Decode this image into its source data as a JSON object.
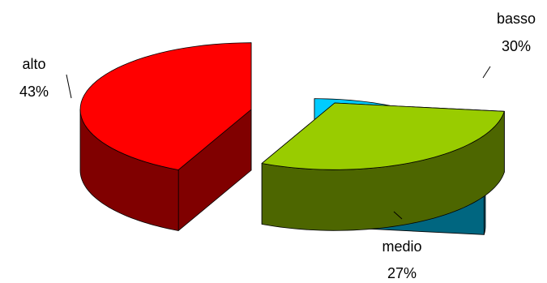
{
  "chart_data": {
    "type": "pie",
    "style": "3d-exploded",
    "title": "",
    "legend": "none",
    "slices": [
      {
        "name": "alto",
        "label": "alto",
        "value": 43,
        "pct_label": "43%",
        "top_color": "#ff0000",
        "side_color": "#800000"
      },
      {
        "name": "basso",
        "label": "basso",
        "value": 30,
        "pct_label": "30%",
        "top_color": "#99cc00",
        "side_color": "#4d6600"
      },
      {
        "name": "medio",
        "label": "medio",
        "value": 27,
        "pct_label": "27%",
        "top_color": "#00ccff",
        "side_color": "#006680"
      }
    ],
    "leader_color": "#000000",
    "edge_color": "#000000"
  }
}
